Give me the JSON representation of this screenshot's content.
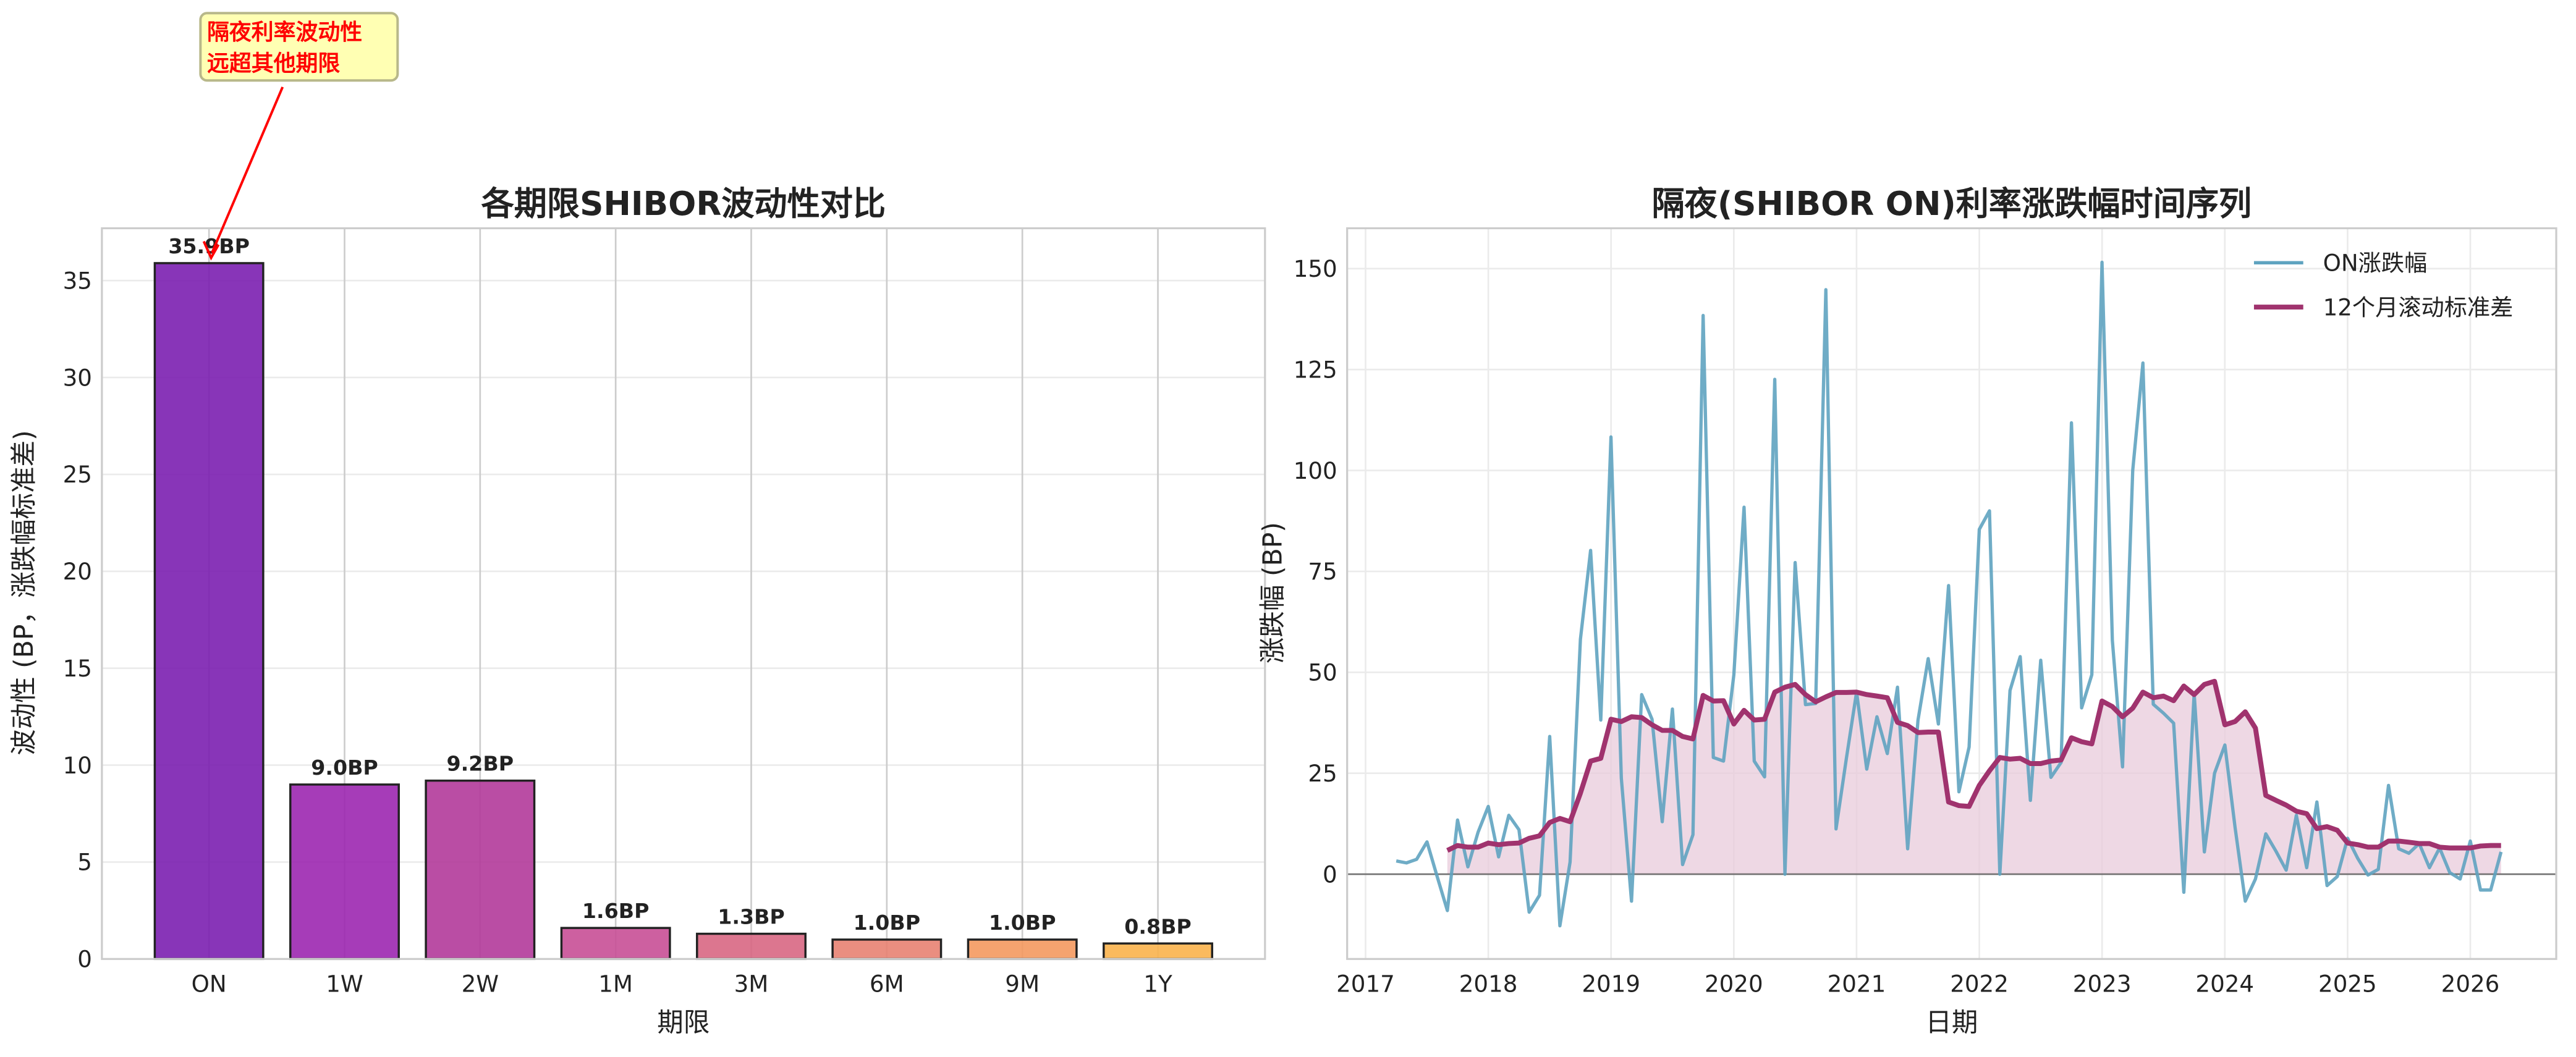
{
  "chart_data": [
    {
      "type": "bar",
      "title": "各期限SHIBOR波动性对比",
      "xlabel": "期限",
      "ylabel": "波动性 (BP，涨跌幅标准差)",
      "categories": [
        "ON",
        "1W",
        "2W",
        "1M",
        "3M",
        "6M",
        "9M",
        "1Y"
      ],
      "values": [
        35.9,
        9.0,
        9.2,
        1.6,
        1.3,
        1.0,
        1.0,
        0.8
      ],
      "value_labels": [
        "35.9BP",
        "9.0BP",
        "9.2BP",
        "1.6BP",
        "1.3BP",
        "1.0BP",
        "1.0BP",
        "0.8BP"
      ],
      "colors": [
        "#7b1fb0",
        "#9c27b0",
        "#b23a9a",
        "#c84f96",
        "#d86783",
        "#e88272",
        "#f4995f",
        "#f9b24c"
      ],
      "ylim": [
        0,
        37.7
      ],
      "yticks": [
        0,
        5,
        10,
        15,
        20,
        25,
        30,
        35
      ],
      "grid": true,
      "annotation": {
        "text_lines": [
          "隔夜利率波动性",
          "远超其他期限"
        ],
        "target_category": "ON",
        "target_value": 35.9,
        "color": "#ff0000",
        "box_color": "#ffffb3"
      }
    },
    {
      "type": "line",
      "title": "隔夜(SHIBOR ON)利率涨跌幅时间序列",
      "xlabel": "日期",
      "ylabel": "涨跌幅 (BP)",
      "xlim": [
        2016.85,
        2026.7
      ],
      "ylim": [
        -21,
        160
      ],
      "xticks": [
        2017,
        2018,
        2019,
        2020,
        2021,
        2022,
        2023,
        2024,
        2025,
        2026
      ],
      "yticks": [
        0,
        25,
        50,
        75,
        100,
        125,
        150
      ],
      "grid": true,
      "legend_position": "top-right",
      "zero_line": true,
      "series": [
        {
          "name": "ON涨跌幅",
          "color": "#5fa3c0",
          "start": "2017-04",
          "values": [
            3.3,
            2.8,
            3.7,
            8,
            -0.6,
            -9,
            13.4,
            1.8,
            10.4,
            16.8,
            4.3,
            14.6,
            11,
            -9.4,
            -5.2,
            34.1,
            -12.8,
            3,
            58.2,
            80.2,
            38.2,
            108.3,
            23.8,
            -6.7,
            44.5,
            38.4,
            13,
            40.9,
            2.4,
            9.8,
            138.4,
            28.9,
            28,
            49.4,
            90.9,
            28,
            24.1,
            122.6,
            0,
            77.2,
            42,
            42.3,
            144.8,
            11.2,
            28.7,
            45.1,
            26,
            39,
            29.9,
            46.3,
            6.3,
            38.2,
            53.4,
            37.2,
            71.5,
            20.4,
            31.5,
            85.4,
            90,
            0,
            45.5,
            53.9,
            18.3,
            53,
            24,
            27.7,
            111.8,
            41.2,
            49.4,
            151.6,
            57.9,
            26.6,
            100,
            126.6,
            42.1,
            39.9,
            37.4,
            -4.5,
            44.8,
            5.5,
            25,
            32,
            11.6,
            -6.7,
            -1.2,
            10,
            5.7,
            1,
            14.6,
            1.6,
            17.9,
            -2.8,
            -0.6,
            8.9,
            3.9,
            -0.2,
            1.2,
            22,
            6.3,
            5.2,
            7.6,
            1.6,
            6.5,
            0.4,
            -1.2,
            8.2,
            -3.9,
            -3.9,
            5.5
          ]
        },
        {
          "name": "12个月滚动标准差",
          "color": "#a0336e",
          "fill": "#e8cbdb",
          "start": "2017-09",
          "values": [
            5.9,
            7.1,
            6.7,
            6.7,
            7.7,
            7.3,
            7.6,
            7.7,
            8.9,
            9.5,
            12.8,
            13.8,
            13,
            20.1,
            28,
            28.7,
            38.4,
            37.8,
            39,
            38.8,
            37,
            35.6,
            35.6,
            34.1,
            33.5,
            44.3,
            42.9,
            43,
            37.2,
            40.6,
            38.2,
            38.4,
            45.1,
            46.3,
            47,
            44.5,
            42.7,
            43.9,
            45,
            45,
            45.1,
            44.5,
            44.1,
            43.7,
            37.6,
            36.8,
            35.1,
            35.2,
            35.2,
            17.9,
            17,
            16.8,
            22,
            25.6,
            28.9,
            28.5,
            28.7,
            27.4,
            27.4,
            28,
            28.3,
            33.8,
            32.8,
            32.3,
            42.9,
            41.5,
            39,
            41.1,
            45.1,
            43.7,
            44.1,
            43,
            46.6,
            44.5,
            47,
            47.8,
            37,
            37.8,
            40.2,
            36.2,
            19.5,
            18.3,
            17.1,
            15.6,
            15,
            11.3,
            11.8,
            10.9,
            7.7,
            7.3,
            6.7,
            6.7,
            8.2,
            8.2,
            7.9,
            7.6,
            7.6,
            6.7,
            6.5,
            6.5,
            6.5,
            7,
            7.1,
            7.1
          ]
        }
      ]
    }
  ]
}
